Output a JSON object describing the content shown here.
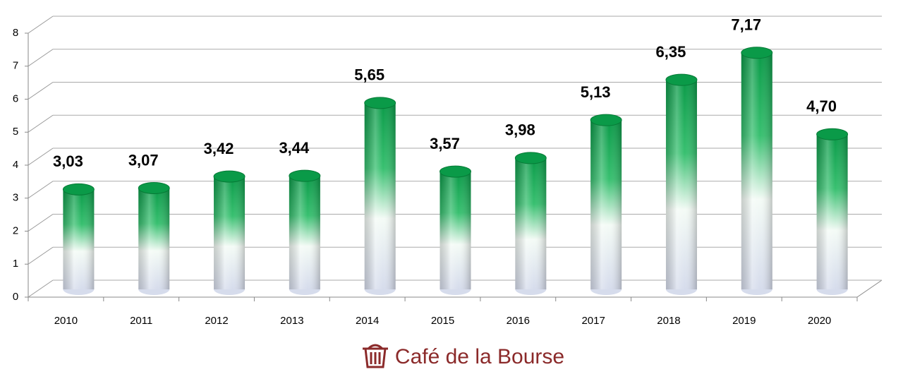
{
  "chart_data": {
    "type": "bar",
    "style": "3d-cylinder",
    "categories": [
      "2010",
      "2011",
      "2012",
      "2013",
      "2014",
      "2015",
      "2016",
      "2017",
      "2018",
      "2019",
      "2020"
    ],
    "values": [
      3.03,
      3.07,
      3.42,
      3.44,
      5.65,
      3.57,
      3.98,
      5.13,
      6.35,
      7.17,
      4.7
    ],
    "value_labels": [
      "3,03",
      "3,07",
      "3,42",
      "3,44",
      "5,65",
      "3,57",
      "3,98",
      "5,13",
      "6,35",
      "7,17",
      "4,70"
    ],
    "color": "#0a9a48",
    "ylim": [
      0,
      8
    ],
    "yticks": [
      0,
      1,
      2,
      3,
      4,
      5,
      6,
      7,
      8
    ],
    "grid": true,
    "source": "Café de la Bourse"
  }
}
